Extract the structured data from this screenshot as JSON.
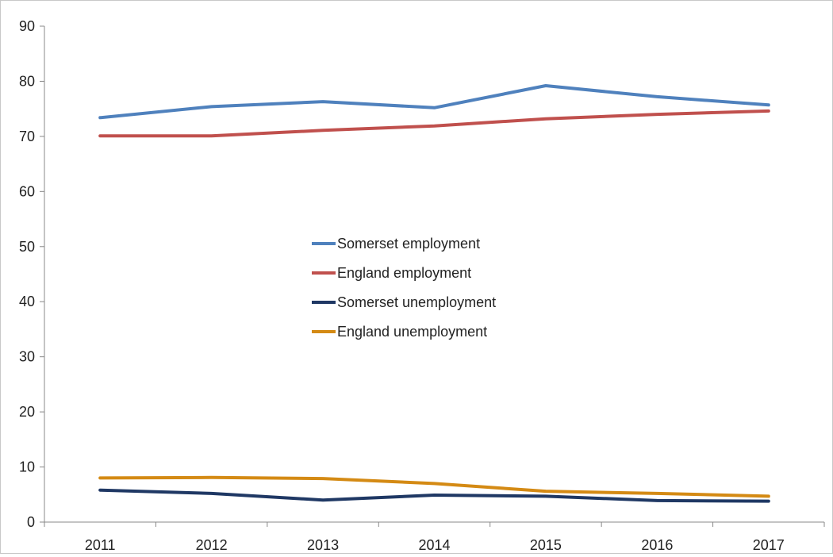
{
  "chart_data": {
    "type": "line",
    "title": "",
    "xlabel": "",
    "ylabel": "",
    "categories": [
      "2011",
      "2012",
      "2013",
      "2014",
      "2015",
      "2016",
      "2017"
    ],
    "ylim": [
      0,
      90
    ],
    "yticks": [
      0,
      10,
      20,
      30,
      40,
      50,
      60,
      70,
      80,
      90
    ],
    "grid": false,
    "legend_position": "center",
    "series": [
      {
        "name": "Somerset employment",
        "color": "#4f81bd",
        "values": [
          73.4,
          75.4,
          76.3,
          75.2,
          79.2,
          77.2,
          75.7
        ]
      },
      {
        "name": "England employment",
        "color": "#c0504d",
        "values": [
          70.1,
          70.1,
          71.1,
          71.9,
          73.2,
          74.0,
          74.6
        ]
      },
      {
        "name": "Somerset unemployment",
        "color": "#1f3864",
        "values": [
          5.8,
          5.2,
          4.0,
          4.9,
          4.7,
          3.9,
          3.8
        ]
      },
      {
        "name": "England unemployment",
        "color": "#d48a14",
        "values": [
          8.0,
          8.1,
          7.9,
          7.0,
          5.6,
          5.2,
          4.7
        ]
      }
    ]
  }
}
